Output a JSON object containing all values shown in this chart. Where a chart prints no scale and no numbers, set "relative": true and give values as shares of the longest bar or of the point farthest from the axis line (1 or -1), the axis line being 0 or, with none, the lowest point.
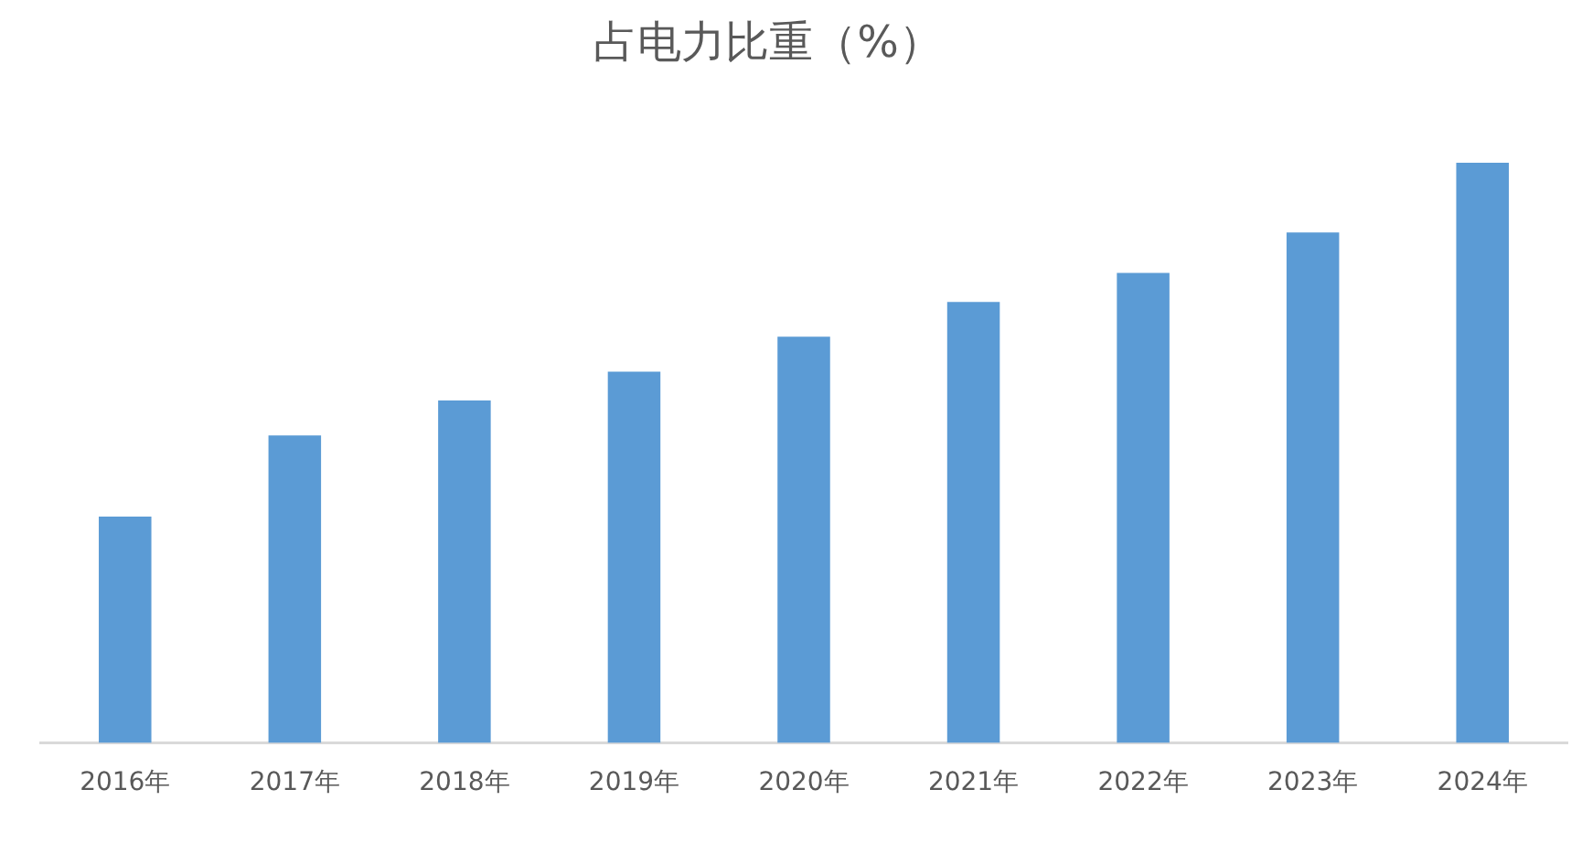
{
  "chart_data": {
    "type": "bar",
    "title": "占电力比重（%）",
    "categories": [
      "2016年",
      "2017年",
      "2018年",
      "2019年",
      "2020年",
      "2021年",
      "2022年",
      "2023年",
      "2024年"
    ],
    "values": [
      0.39,
      0.53,
      0.59,
      0.64,
      0.7,
      0.76,
      0.81,
      0.88,
      1
    ],
    "color": "#5b9bd5",
    "relative": true
  }
}
